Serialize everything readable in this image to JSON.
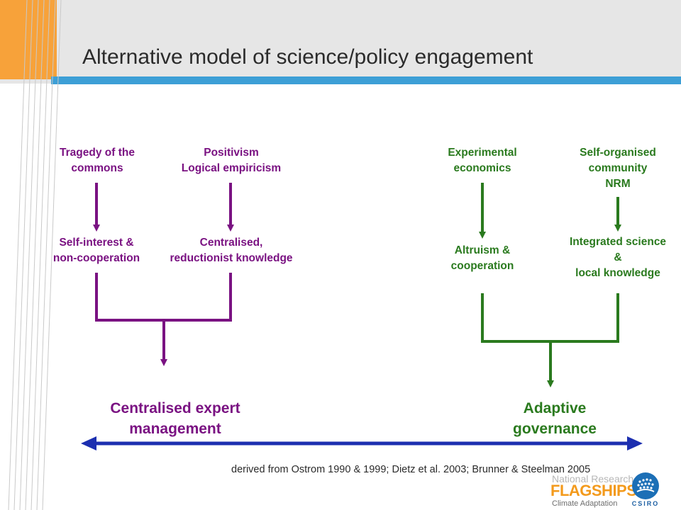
{
  "slide": {
    "title": "Alternative model of science/policy engagement"
  },
  "colors": {
    "accent_orange": "#f7a23a",
    "accent_blue": "#3d9fd6",
    "left_branch": "#7a1282",
    "right_branch": "#2a7a1e",
    "axis_arrow": "#1c2fb0"
  },
  "left_branch": {
    "source_1": [
      "Tragedy of the",
      "commons"
    ],
    "source_2": [
      "Positivism",
      "Logical empiricism"
    ],
    "effect_1": [
      "Self-interest &",
      "non-cooperation"
    ],
    "effect_2": [
      "Centralised,",
      "reductionist knowledge"
    ],
    "outcome": [
      "Centralised expert",
      "management"
    ]
  },
  "right_branch": {
    "source_1": [
      "Experimental",
      "economics"
    ],
    "source_2": [
      "Self-organised",
      "community",
      "NRM"
    ],
    "effect_1": [
      "Altruism &",
      "cooperation"
    ],
    "effect_2": [
      "Integrated science",
      "&",
      "local knowledge"
    ],
    "outcome": [
      "Adaptive",
      "governance"
    ]
  },
  "citation": "derived from Ostrom 1990 & 1999; Dietz et al. 2003; Brunner & Steelman 2005",
  "logo": {
    "line1": "National Research",
    "line2": "FLAGSHIPS",
    "line3": "Climate Adaptation",
    "org": "CSIRO"
  }
}
